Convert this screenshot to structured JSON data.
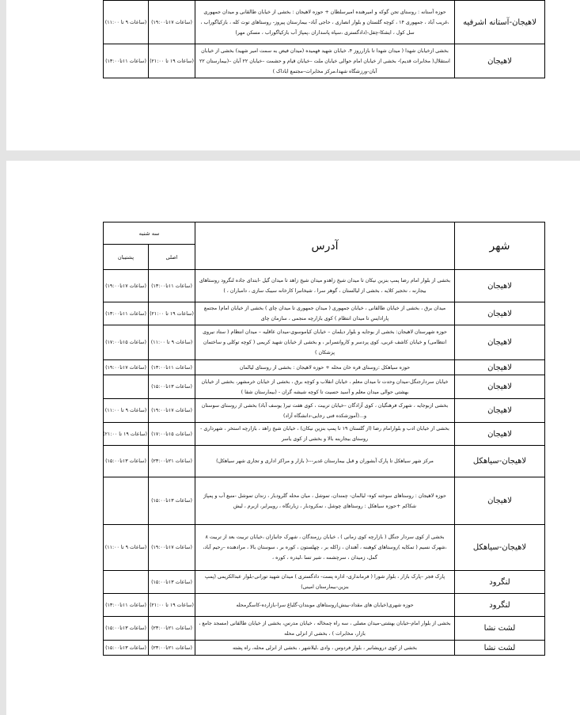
{
  "page1_rows": [
    {
      "city": "لاهیجان-آستانه اشرفیه",
      "address": "حوزه آستانه : روستای تجن گوکه و امیرهنده امیرسلطان + حوزه لاهیجان : بخشی از خیابان طالقانی و میدان جمهوری ،غریب آباد ، جمهوری ۱۴ ، کوچه گلستان و بلوار انصاری ، حاجی آباد- بیمارستان پیروز- روستاهای توت کله ، بازکیاگوراب ، سل کول ، ایشکا-چفل-(دادگستری ،سپاه پاسداران ،پمپاژ آب بازکیاگوراب ، مسکن مهر)",
      "main": "(ساعات ۱۷تا۱۹:۰۰)",
      "backup": "(ساعات ۹ تا ۱۱:۰۰)"
    },
    {
      "city": "لاهیجان",
      "address": "بخشی ازخیابان شهدا ( میدان شهدا تا بازارروز ۴، خیابان شهید فهمیده (میدان فیض به سمت امیر شهید) بخشی از خیابان استقلال( مخابرات قدیم)- بخشی از خیابان امام حوالی خیابان ملت –خیابان قیام و حشمت –خیابان ۲۲ آبان –(بیمارستان ۲۲ آبان-ورزشگاه شهدا،مرکز مخابرات–مجتمع اباداک )",
      "main": "(ساعات ۱۹ تا ۲۱:۰۰)",
      "backup": "(ساعات ۱۱تا۱۳:۰۰)"
    }
  ],
  "header": {
    "city": "شهر",
    "address": "آدرس",
    "day": "سه شنبه",
    "main": "اصلی",
    "backup": "پشتیبان"
  },
  "page2_rows": [
    {
      "city": "لاهیجان",
      "address": "بخشی از بلوار امام رضا پمپ بنزین نیکان تا میدان شیخ زاهدو میدان شیخ زاهد تا میدان گیل -ابتدای جاده لنگرود روستاهای بیجارنه ، نخجیر کلایه ، بخشی از لیالستان ، گوهر سرا ، شیخانبرا کارخانه سیبک سازی ، دامباران ، )",
      "main": "(ساعات ۱۱تا۱۳:۰۰)",
      "backup": "(ساعات ۱۷تا۱۹:۰۰)"
    },
    {
      "city": "لاهیجان",
      "address": "میدان برق ، بخشی از خیابان طالقانی ، خیابان جمهوری ( میدان جمهوری تا میدان چای ) بخشی از خیابان امام( مجتمع پارادایس تا میدان انتظام ) کوی بازارچه منجمی ، سازمان چای",
      "main": "(ساعات ۱۹ تا ۲۱:۰۰)",
      "backup": "(ساعات ۱۱تا۱۳:۰۰)"
    },
    {
      "city": "لاهیجان",
      "address": "حوزه شهرستان لاهیجان: بخشی از بوجایه و بلوار دیلمان – خیابان کیاموسوی-میدان عاقلیه – میدان انتظام ( ستاد نیروی انتظامی) و خیابان کاشف غربی، کوی پردسر و کاروانسرابر ، و بخشی از خیابان شهید کریمی ( کوچه توکلی و ساختمان پزشکان )",
      "main": "(ساعات ۹ تا ۱۱:۰۰)",
      "backup": "(ساعات ۱۵تا۱۷:۰۰)"
    },
    {
      "city": "لاهیجان",
      "address": "حوزه سیاهکل :روستای قره خان محله + حوزه لاهیجان : بخشی از روستای لیالمان",
      "main": "(ساعات ۱۱تا۱۳:۰۰)",
      "backup": "(ساعات ۱۷تا۱۹:۰۰)"
    },
    {
      "city": "لاهیجان",
      "address": "خیابان سردارجنگل-میدان وحدت تا میدان معلم ، خیابان انقلاب و کوچه برق ، بخشی از خیابان خرمشهر، بخشی از خیابان بهشتی حوالی میدان معلم و آسید حسیت تا کوچه شیشه گران - (بیمارستان شفا )",
      "main": "(ساعات ۱۳تا۱۵:۰۰)",
      "backup": ""
    },
    {
      "city": "لاهیجان",
      "address": "بخشی ازبوجایه ، شهرک فرهنگیان ، کوی آزادگان –خیابان تربیت ، کوی هفت تیر( یوسف آباد) بخشی از روستای سوستان و...(آموزشکده فنی رجایی-دانشگاه آزاد)",
      "main": "(ساعات ۱۷تا۱۹:۰۰)",
      "backup": "(ساعات ۹ تا ۱۱:۰۰)"
    },
    {
      "city": "لاهیجان",
      "address": "بخشی از خیابان ادب و بلوارامام رضا (از گلستان ۱۹ تا پمپ بنزین نیکان) ، خیابان شیخ زاهد ، بازارچه استخر ، شهرداری - روستای بیجاربنه بالا و بخشی از کوی یاسر",
      "main": "(ساعات ۱۵تا۱۷:۰۰)",
      "backup": "(ساعات ۱۹ تا ۲۱:۰۰)"
    },
    {
      "city": "لاهیجان-سیاهکل",
      "address": "مرکز شهر سیاهکل تا پارک آبشوران و قبل بیمارستان غدیر---( بازار و مراکز اداری و تجاری شهر سیاهکل)",
      "main": "(ساعات ۲۱تا۲۳:۰۰)",
      "backup": "(ساعات ۱۳تا۱۵:۰۰)"
    },
    {
      "city": "لاهیجان",
      "address": "حوزه لاهیجان : روستاهای سوخته کوه- لیالمان- چمندان، تموشل ، میان محله گلرودبار ، زندان تموشل -منبع آب و پمپاژ شکاکم +حوزه سیاهکل : روستاهای چوشل ، نمکرودبار ، زبارتگاه ، رویبرایر، ازبرم ، لیش",
      "main": "(ساعات ۱۳تا۱۵:۰۰)",
      "backup": ""
    },
    {
      "city": "لاهیجان-سیاهکل",
      "address": "بخشی از کوی سردار جنگل ( بازارچه کوی زمانی ) ، خیابان رزمندگان ، شهرک جانبازان ،خیابان تربیت بعد از تربیت ۸ ،شهرک نسیم ( تمکایه )روستاهای کوهبنه ، آهندان ، زاکله بر ، چهلستون ، کوره بر ، سوستان بالا ، مرادهنده –رحیم آباد، گمل، زمیدان ، سرچشمه ، شیر تسا ،لیدره ، کوره ،",
      "main": "(ساعات ۱۷تا۱۹:۰۰)",
      "backup": "(ساعات ۹ تا ۱۱:۰۰)"
    },
    {
      "city": "لنگرود",
      "address": "پارک فجر –پارک بازار ، بلوار شورا ( فرمانداری- اداره پست- دادگستری ) میدان شهید تورانی-بلوار عبدالکریمی (پمپ بنزین-بیمارستان امینی)",
      "main": "(ساعات ۱۳تا۱۵:۰۰)",
      "backup": ""
    },
    {
      "city": "لنگرود",
      "address": "حوزه شهری(خیابان های مقداد-بینش)روستاهای موبندان-گلباغ سرا-بازارده-کاسگرمحله",
      "main": "(ساعات ۱۹ تا ۲۱:۰۰)",
      "backup": "(ساعات ۱۱تا۱۳:۰۰)"
    },
    {
      "city": "لشت نشا",
      "address": "بخشی از بلوار امام-خیابان بهشتی-میدان مصلی ، سه راه چمخاله ، خیابان مدرس، بخشی از خیابان طالقانی (مسجد جامع ، بازار، مخابرات ) ، بخشی از انزلی محله",
      "main": "(ساعات ۲۱تا۲۳:۰۰)",
      "backup": "(ساعات ۱۳تا۱۵:۰۰)"
    },
    {
      "city": "لشت نشا",
      "address": "بخشی از کوی درویشانبر ، بلوار فردوس ، وادی ،لیلاشهر ، بخشی از انزلی محله، راه پشته",
      "main": "(ساعات ۲۱تا۲۳:۰۰)",
      "backup": "(ساعات ۱۳تا۱۵:۰۰)"
    }
  ]
}
